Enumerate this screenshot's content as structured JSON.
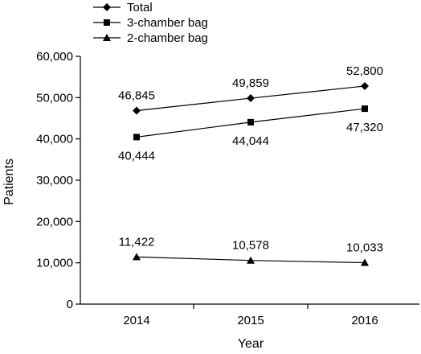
{
  "chart_data": {
    "type": "line",
    "categories": [
      "2014",
      "2015",
      "2016"
    ],
    "series": [
      {
        "name": "Total",
        "marker": "diamond",
        "values": [
          46845,
          49859,
          52800
        ],
        "labels": [
          "46,845",
          "49,859",
          "52,800"
        ],
        "label_position": "above"
      },
      {
        "name": "3-chamber bag",
        "marker": "square",
        "values": [
          40444,
          44044,
          47320
        ],
        "labels": [
          "40,444",
          "44,044",
          "47,320"
        ],
        "label_position": "below"
      },
      {
        "name": "2-chamber bag",
        "marker": "triangle",
        "values": [
          11422,
          10578,
          10033
        ],
        "labels": [
          "11,422",
          "10,578",
          "10,033"
        ],
        "label_position": "above"
      }
    ],
    "xlabel": "Year",
    "ylabel": "Patients",
    "ylim": [
      0,
      60000
    ],
    "yticks": [
      0,
      10000,
      20000,
      30000,
      40000,
      50000,
      60000
    ],
    "ytick_labels": [
      "0",
      "10,000",
      "20,000",
      "30,000",
      "40,000",
      "50,000",
      "60,000"
    ],
    "grid": false,
    "legend_position": "top-left",
    "line_color": "#000000"
  }
}
